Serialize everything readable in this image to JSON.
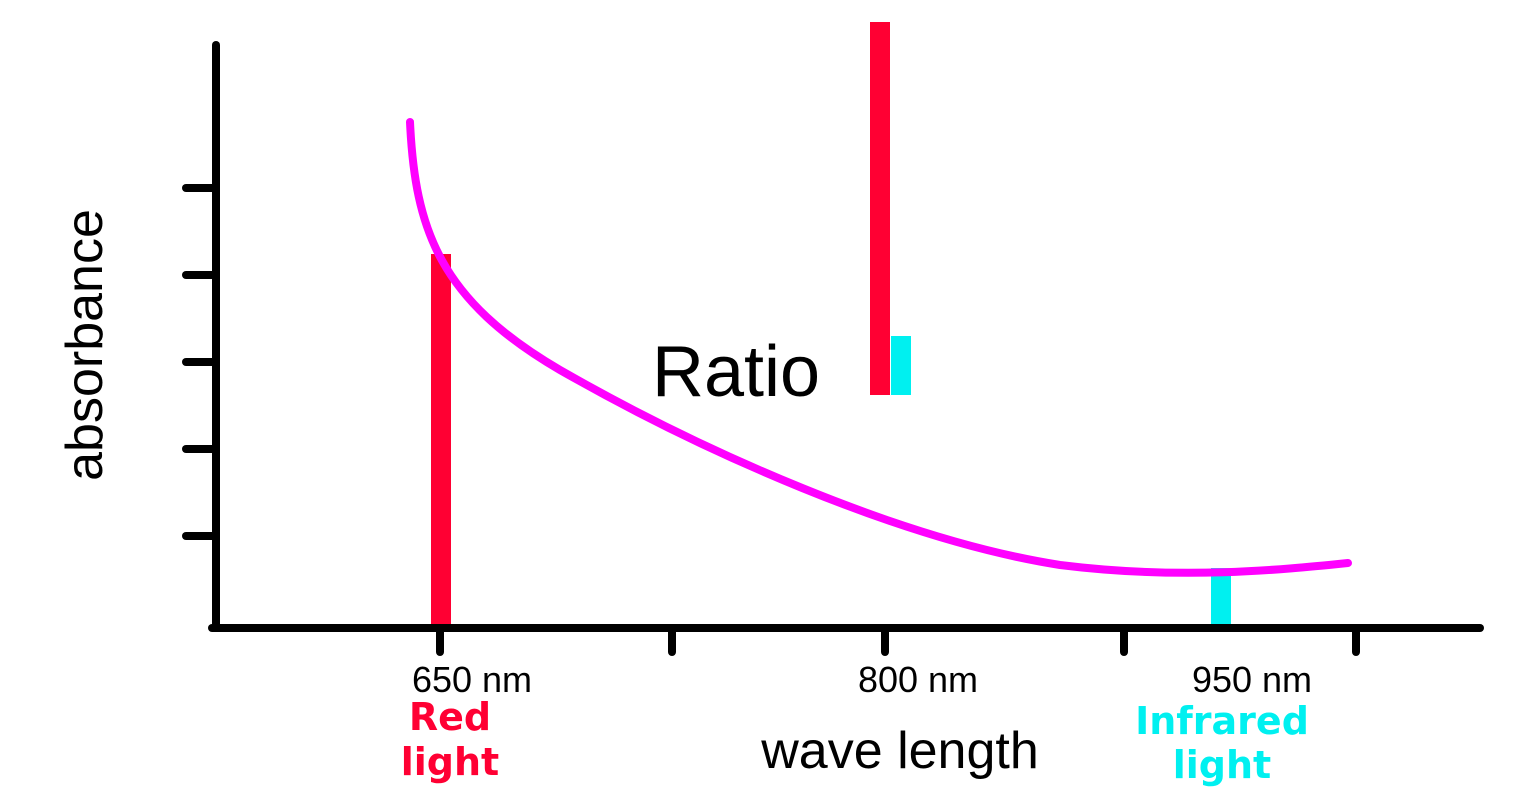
{
  "colors": {
    "curve": "#ff00ff",
    "red_light": "#ff0033",
    "infrared_light": "#00f0f0",
    "axis": "#000000",
    "background": "#ffffff"
  },
  "y_axis": {
    "label": "absorbance",
    "tick_count": 5
  },
  "x_axis": {
    "label": "wave length",
    "tick_labels": [
      "650 nm",
      "800 nm",
      "950 nm"
    ]
  },
  "annotations": {
    "ratio_label": "Ratio",
    "red_light": [
      "Red",
      "light"
    ],
    "infrared_light": [
      "Infrared",
      "light"
    ]
  },
  "curve": {
    "description_points_nm_absorbance": [
      [
        645,
        5.6
      ],
      [
        650,
        4.4
      ],
      [
        700,
        2.6
      ],
      [
        800,
        1.0
      ],
      [
        880,
        0.6
      ],
      [
        940,
        0.58
      ],
      [
        990,
        0.68
      ]
    ]
  },
  "bars": {
    "red_at_650": {
      "wavelength": "650 nm",
      "relative_height": 4.2
    },
    "infrared_at_950": {
      "wavelength": "950 nm",
      "relative_height": 0.6
    },
    "ratio_red": {
      "relative_height": 4.3
    },
    "ratio_infrared": {
      "relative_height": 0.7
    }
  }
}
